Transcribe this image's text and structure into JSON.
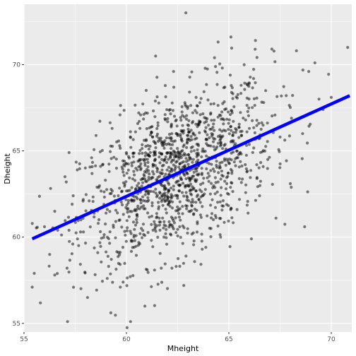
{
  "chart_data": {
    "type": "scatter",
    "xlabel": "Mheight",
    "ylabel": "Dheight",
    "xlim": [
      55.0,
      71.0
    ],
    "ylim": [
      54.5,
      73.5
    ],
    "x_ticks": [
      55,
      60,
      65,
      70
    ],
    "y_ticks": [
      55,
      60,
      65,
      70
    ],
    "grid": true,
    "legend": "none",
    "colors": {
      "panel": "#ebebeb",
      "grid": "#ffffff",
      "points": "#000000",
      "fit_line": "#0000ff",
      "tick_text": "#4d4d4d"
    },
    "points_note_count": 1375,
    "sample_points": [
      [
        55.4,
        57.1
      ],
      [
        55.5,
        57.9
      ],
      [
        56.0,
        60.6
      ],
      [
        56.5,
        57.8
      ],
      [
        56.5,
        61.5
      ],
      [
        57.0,
        63.5
      ],
      [
        57.1,
        58.2
      ],
      [
        57.2,
        64.9
      ],
      [
        57.4,
        62.4
      ],
      [
        57.9,
        60.3
      ],
      [
        58.1,
        56.5
      ],
      [
        58.3,
        64.6
      ],
      [
        58.6,
        59.1
      ],
      [
        58.9,
        61.9
      ],
      [
        59.3,
        66.3
      ],
      [
        59.6,
        62.4
      ],
      [
        59.7,
        57.1
      ],
      [
        59.9,
        64.4
      ],
      [
        60.2,
        55.1
      ],
      [
        60.3,
        59.4
      ],
      [
        60.6,
        67.2
      ],
      [
        60.7,
        62.8
      ],
      [
        60.9,
        56.0
      ],
      [
        61.1,
        65.1
      ],
      [
        61.3,
        60.4
      ],
      [
        61.5,
        63.8
      ],
      [
        61.7,
        58.2
      ],
      [
        61.9,
        66.8
      ],
      [
        62.1,
        62.0
      ],
      [
        62.3,
        69.6
      ],
      [
        62.4,
        64.1
      ],
      [
        62.6,
        60.6
      ],
      [
        62.8,
        57.2
      ],
      [
        62.9,
        73.0
      ],
      [
        63.1,
        65.6
      ],
      [
        63.2,
        61.8
      ],
      [
        63.4,
        68.1
      ],
      [
        63.5,
        63.6
      ],
      [
        63.7,
        59.3
      ],
      [
        63.9,
        66.7
      ],
      [
        64.1,
        62.5
      ],
      [
        64.3,
        70.4
      ],
      [
        64.4,
        64.4
      ],
      [
        64.6,
        60.0
      ],
      [
        64.8,
        67.4
      ],
      [
        64.9,
        63.1
      ],
      [
        65.1,
        71.6
      ],
      [
        65.2,
        65.9
      ],
      [
        65.4,
        61.6
      ],
      [
        65.6,
        68.8
      ],
      [
        65.8,
        64.2
      ],
      [
        66.0,
        66.3
      ],
      [
        66.1,
        59.9
      ],
      [
        66.3,
        71.4
      ],
      [
        66.5,
        62.4
      ],
      [
        66.7,
        67.8
      ],
      [
        66.9,
        64.5
      ],
      [
        67.1,
        70.9
      ],
      [
        67.3,
        61.1
      ],
      [
        67.5,
        65.8
      ],
      [
        67.8,
        68.2
      ],
      [
        68.0,
        63.1
      ],
      [
        68.3,
        70.8
      ],
      [
        68.6,
        66.0
      ],
      [
        68.7,
        60.6
      ],
      [
        68.9,
        69.6
      ],
      [
        69.2,
        70.1
      ],
      [
        69.4,
        68.0
      ],
      [
        69.6,
        67.4
      ],
      [
        70.0,
        68.1
      ],
      [
        70.3,
        67.9
      ],
      [
        70.8,
        71.0
      ]
    ],
    "fit_line": {
      "x": [
        55.4,
        70.9
      ],
      "y": [
        59.9,
        68.2
      ]
    }
  }
}
